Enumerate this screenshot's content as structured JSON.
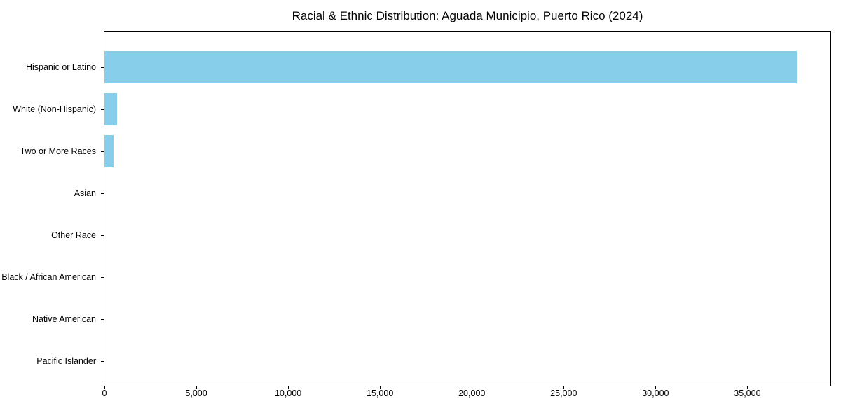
{
  "chart_data": {
    "type": "bar",
    "orientation": "horizontal",
    "title": "Racial & Ethnic Distribution: Aguada Municipio, Puerto Rico (2024)",
    "categories": [
      "Hispanic or Latino",
      "White (Non-Hispanic)",
      "Two or More Races",
      "Asian",
      "Other Race",
      "Black / African American",
      "Native American",
      "Pacific Islander"
    ],
    "values": [
      37700,
      670,
      490,
      0,
      0,
      0,
      0,
      0
    ],
    "xlabel": "",
    "ylabel": "",
    "xlim": [
      0,
      39600
    ],
    "xticks": [
      {
        "value": 0,
        "label": "0"
      },
      {
        "value": 5000,
        "label": "5,000"
      },
      {
        "value": 10000,
        "label": "10,000"
      },
      {
        "value": 15000,
        "label": "15,000"
      },
      {
        "value": 20000,
        "label": "20,000"
      },
      {
        "value": 25000,
        "label": "25,000"
      },
      {
        "value": 30000,
        "label": "30,000"
      },
      {
        "value": 35000,
        "label": "35,000"
      }
    ],
    "bar_color": "#87CEEB",
    "axis_color": "#000000",
    "text_color": "#000000",
    "background_color": "#ffffff",
    "grid": false,
    "legend": "none"
  }
}
